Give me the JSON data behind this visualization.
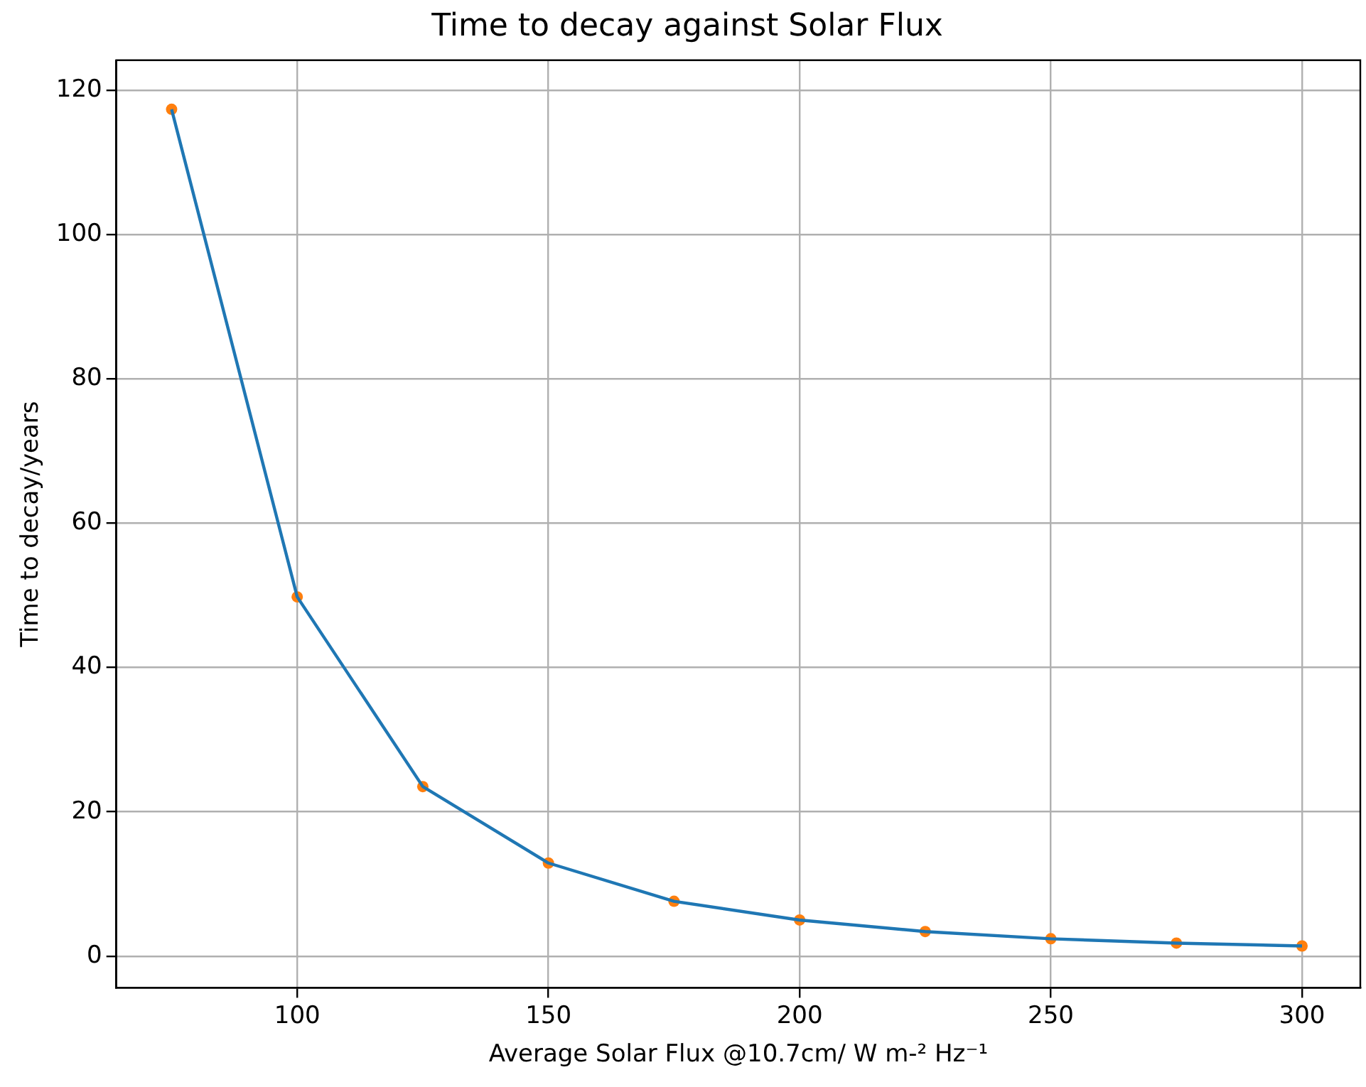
{
  "chart_data": {
    "type": "line",
    "title": "Time to decay against Solar Flux",
    "xlabel": "Average Solar Flux @10.7cm/ W m-² Hz⁻¹",
    "ylabel": "Time to decay/years",
    "x": [
      75,
      100,
      125,
      150,
      175,
      200,
      225,
      250,
      275,
      300
    ],
    "series": [
      {
        "color": "#1f77b4",
        "marker": "none",
        "values": [
          117.4,
          49.8,
          23.5,
          12.9,
          7.6,
          5.0,
          3.4,
          2.4,
          1.8,
          1.4
        ]
      },
      {
        "type": "scatter",
        "color": "#ff7f0e",
        "marker": "circle",
        "values": [
          117.4,
          49.8,
          23.5,
          12.9,
          7.6,
          5.0,
          3.4,
          2.4,
          1.8,
          1.4
        ]
      }
    ],
    "xlim": [
      64,
      311.6
    ],
    "xticks": [
      100,
      150,
      200,
      250,
      300
    ],
    "ylim": [
      -4.4,
      124.2
    ],
    "yticks": [
      0,
      20,
      40,
      60,
      80,
      100,
      120
    ],
    "grid": true,
    "legend": false
  }
}
